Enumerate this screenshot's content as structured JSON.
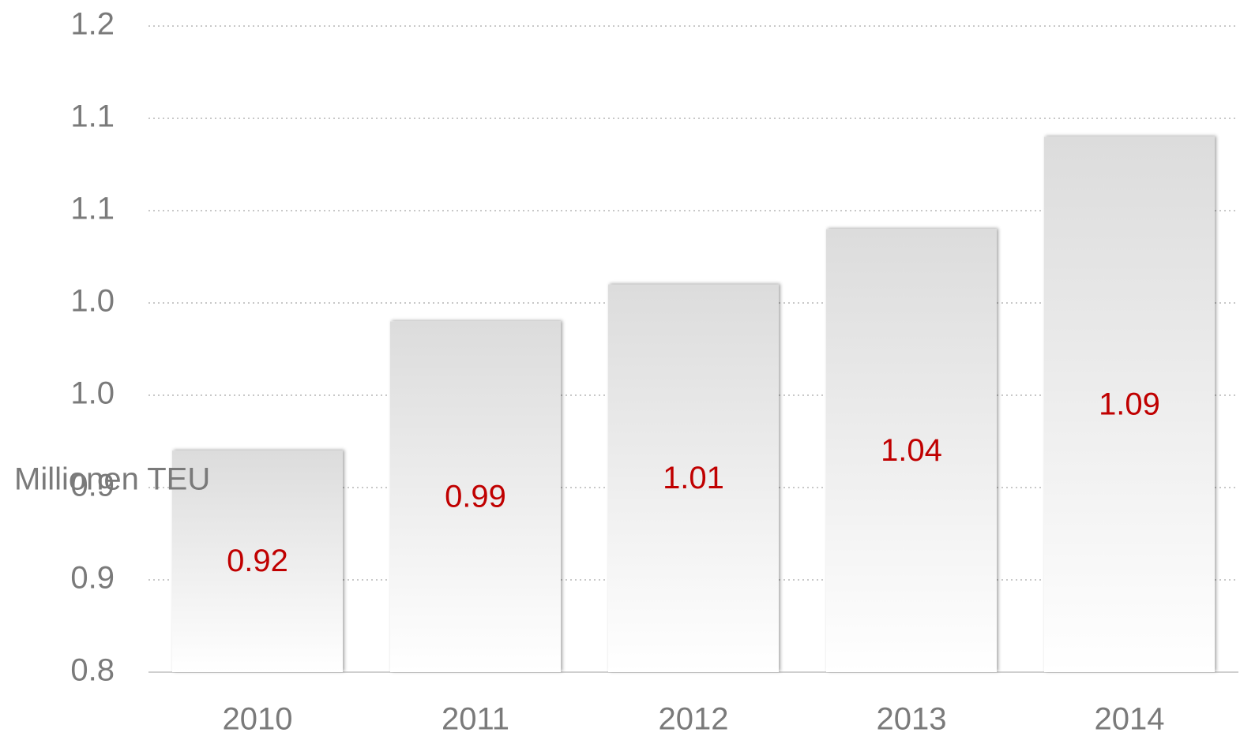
{
  "chart_data": {
    "type": "bar",
    "y_axis_label": "Millionen TEU",
    "categories": [
      "2010",
      "2011",
      "2012",
      "2013",
      "2014"
    ],
    "values": [
      0.92,
      0.99,
      1.01,
      1.04,
      1.09
    ],
    "ylim": [
      0.8,
      1.15
    ],
    "yticks": [
      {
        "value": 0.8,
        "label": "0.8"
      },
      {
        "value": 0.85,
        "label": "0.9"
      },
      {
        "value": 0.9,
        "label": "0.9"
      },
      {
        "value": 0.95,
        "label": "1.0"
      },
      {
        "value": 1.0,
        "label": "1.0"
      },
      {
        "value": 1.05,
        "label": "1.1"
      },
      {
        "value": 1.1,
        "label": "1.1"
      },
      {
        "value": 1.15,
        "label": "1.2"
      }
    ],
    "grid": true,
    "color": "#dcdcdc",
    "value_label_color": "#c00000"
  }
}
